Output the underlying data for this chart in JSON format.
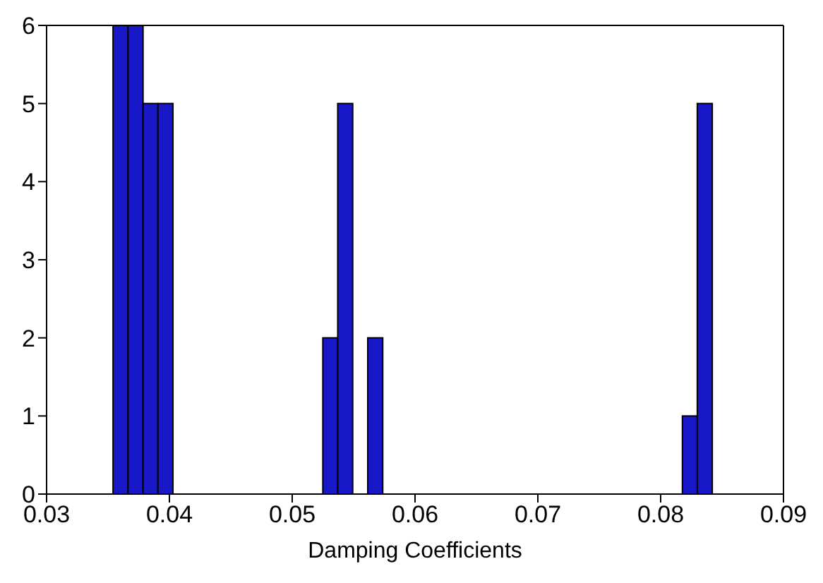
{
  "chart_data": {
    "type": "histogram",
    "xlabel": "Damping Coefficients",
    "bins": [
      0.0354,
      0.03662,
      0.03784,
      0.03905,
      0.04027,
      0.04149,
      0.04271,
      0.04392,
      0.04514,
      0.04636,
      0.04758,
      0.04879,
      0.05001,
      0.05123,
      0.05245,
      0.05366,
      0.05488,
      0.0561,
      0.05732,
      0.05853,
      0.05975,
      0.06097,
      0.06219,
      0.0634,
      0.06462,
      0.06584,
      0.06706,
      0.06827,
      0.06949,
      0.07071,
      0.07193,
      0.07314,
      0.07436,
      0.07558,
      0.0768,
      0.07801,
      0.07923,
      0.08045,
      0.08167,
      0.08288,
      0.0841
    ],
    "values": [
      6,
      6,
      5,
      5,
      0,
      0,
      0,
      0,
      0,
      0,
      0,
      0,
      0,
      0,
      2,
      5,
      0,
      2,
      0,
      0,
      0,
      0,
      0,
      0,
      0,
      0,
      0,
      0,
      0,
      0,
      0,
      0,
      0,
      0,
      0,
      0,
      0,
      0,
      1,
      5
    ],
    "color": "#1818c8",
    "xlim": [
      0.03,
      0.09
    ],
    "xticks": [
      0.03,
      0.04,
      0.05,
      0.06,
      0.07,
      0.08,
      0.09
    ],
    "ylim": [
      0,
      6
    ],
    "yticks": [
      0,
      1,
      2,
      3,
      4,
      5,
      6
    ],
    "grid": false
  }
}
